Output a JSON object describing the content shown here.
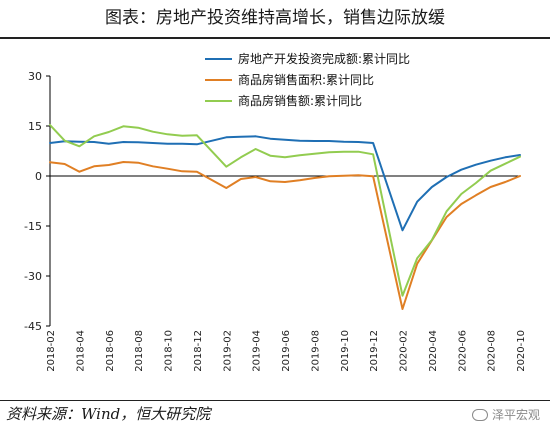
{
  "title": "图表：房地产投资维持高增长，销售边际放缓",
  "source": "资料来源：Wind，恒大研究院",
  "watermark": "泽平宏观",
  "colors": {
    "investment": "#1f6fb4",
    "area": "#e07f24",
    "sales": "#92cc50",
    "axis": "#000000"
  },
  "chart_data": {
    "type": "line",
    "yticks": [
      30,
      15,
      0,
      -15,
      -30,
      -45
    ],
    "ylim": [
      -45,
      30
    ],
    "xticks": [
      "2018-02",
      "2018-04",
      "2018-06",
      "2018-08",
      "2018-10",
      "2018-12",
      "2019-02",
      "2019-04",
      "2019-06",
      "2019-08",
      "2019-10",
      "2019-12",
      "2020-02",
      "2020-04",
      "2020-06",
      "2020-08",
      "2020-10"
    ],
    "legend": {
      "position": "top-right"
    },
    "series": [
      {
        "name": "房地产开发投资完成额:累计同比",
        "color_key": "investment",
        "x": [
          "2018-02",
          "2018-03",
          "2018-04",
          "2018-05",
          "2018-06",
          "2018-07",
          "2018-08",
          "2018-09",
          "2018-10",
          "2018-11",
          "2018-12",
          "2019-02",
          "2019-03",
          "2019-04",
          "2019-05",
          "2019-06",
          "2019-07",
          "2019-08",
          "2019-09",
          "2019-10",
          "2019-11",
          "2019-12",
          "2020-02",
          "2020-03",
          "2020-04",
          "2020-05",
          "2020-06",
          "2020-07",
          "2020-08",
          "2020-09",
          "2020-10"
        ],
        "values": [
          9.9,
          10.4,
          10.3,
          10.2,
          9.7,
          10.2,
          10.1,
          9.9,
          9.7,
          9.7,
          9.5,
          11.6,
          11.8,
          11.9,
          11.2,
          10.9,
          10.6,
          10.5,
          10.5,
          10.3,
          10.2,
          9.9,
          -16.3,
          -7.7,
          -3.3,
          -0.3,
          1.9,
          3.4,
          4.6,
          5.6,
          6.3
        ]
      },
      {
        "name": "商品房销售面积:累计同比",
        "color_key": "area",
        "x": [
          "2018-02",
          "2018-03",
          "2018-04",
          "2018-05",
          "2018-06",
          "2018-07",
          "2018-08",
          "2018-09",
          "2018-10",
          "2018-11",
          "2018-12",
          "2019-02",
          "2019-03",
          "2019-04",
          "2019-05",
          "2019-06",
          "2019-07",
          "2019-08",
          "2019-09",
          "2019-10",
          "2019-11",
          "2019-12",
          "2020-02",
          "2020-03",
          "2020-04",
          "2020-05",
          "2020-06",
          "2020-07",
          "2020-08",
          "2020-09",
          "2020-10"
        ],
        "values": [
          4.1,
          3.6,
          1.3,
          2.9,
          3.3,
          4.2,
          4.0,
          2.9,
          2.2,
          1.4,
          1.3,
          -3.6,
          -0.9,
          -0.3,
          -1.6,
          -1.8,
          -1.3,
          -0.6,
          -0.1,
          0.1,
          0.2,
          -0.1,
          -39.9,
          -26.3,
          -19.3,
          -12.3,
          -8.4,
          -5.8,
          -3.3,
          -1.8,
          0.0
        ]
      },
      {
        "name": "商品房销售额:累计同比",
        "color_key": "sales",
        "x": [
          "2018-02",
          "2018-03",
          "2018-04",
          "2018-05",
          "2018-06",
          "2018-07",
          "2018-08",
          "2018-09",
          "2018-10",
          "2018-11",
          "2018-12",
          "2019-02",
          "2019-03",
          "2019-04",
          "2019-05",
          "2019-06",
          "2019-07",
          "2019-08",
          "2019-09",
          "2019-10",
          "2019-11",
          "2019-12",
          "2020-02",
          "2020-03",
          "2020-04",
          "2020-05",
          "2020-06",
          "2020-07",
          "2020-08",
          "2020-09",
          "2020-10"
        ],
        "values": [
          15.3,
          10.6,
          8.9,
          11.9,
          13.2,
          14.9,
          14.5,
          13.3,
          12.5,
          12.1,
          12.2,
          2.8,
          5.6,
          8.1,
          6.1,
          5.6,
          6.2,
          6.7,
          7.1,
          7.3,
          7.3,
          6.5,
          -35.9,
          -24.7,
          -19.2,
          -10.6,
          -5.4,
          -2.1,
          1.6,
          3.7,
          5.8
        ]
      }
    ]
  }
}
